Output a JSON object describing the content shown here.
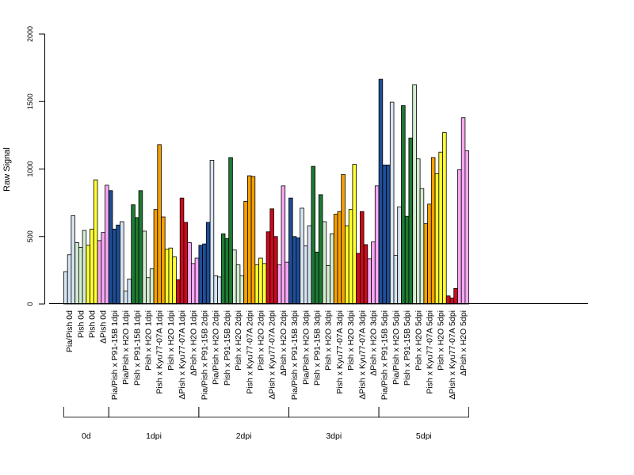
{
  "chart_data": {
    "type": "bar",
    "ylabel": "Raw Signal",
    "ylim": [
      0,
      2000
    ],
    "yticks": [
      0,
      500,
      1000,
      1500,
      2000
    ],
    "grid": false,
    "legend": "none",
    "colors": {
      "Pia/Pish": "#d6e4f2",
      "Pia/Pish x P91-15B": "#1f4e97",
      "Pia/Pish x H2O": "#d6e4f2",
      "Pish": "#d4ecd0",
      "Pish x P91-15B": "#1f7a33",
      "Pish x H2O": "#d4ecd0",
      "Pish x Kyu77-07A": "#f5a000",
      "Pish (0d)": "#ffff33",
      "Pish x H2O (yellow)": "#ffff33",
      "ΔPish": "#f7a8f2",
      "ΔPish x Kyu77-07A": "#cc0a1e",
      "ΔPish x H2O": "#f7a8f2"
    },
    "categories": [
      {
        "label": "Pia/Pish 0d",
        "color": "#d6e4f2",
        "values": [
          240,
          365,
          655
        ]
      },
      {
        "label": "Pish 0d",
        "color": "#d4ecd0",
        "values": [
          455,
          420,
          545
        ]
      },
      {
        "label": "Pish 0d",
        "color": "#ffff33",
        "values": [
          435,
          555,
          920
        ]
      },
      {
        "label": "ΔPish 0d",
        "color": "#f7a8f2",
        "values": [
          470,
          530,
          880
        ]
      },
      {
        "label": "Pia/Pish x P91-15B 1dpi",
        "color": "#1f4e97",
        "values": [
          840,
          555,
          585
        ]
      },
      {
        "label": "Pia/Pish x H2O 1dpi",
        "color": "#d6e4f2",
        "values": [
          610,
          95,
          185
        ]
      },
      {
        "label": "Pish x P91-15B 1dpi",
        "color": "#1f7a33",
        "values": [
          735,
          640,
          840
        ]
      },
      {
        "label": "Pish x H2O 1dpi",
        "color": "#d4ecd0",
        "values": [
          540,
          195,
          260
        ]
      },
      {
        "label": "Pish x Kyu77-07A 1dpi",
        "color": "#f5a000",
        "values": [
          700,
          1180,
          645
        ]
      },
      {
        "label": "Pish x H2O 1dpi",
        "color": "#ffff33",
        "values": [
          405,
          415,
          350
        ]
      },
      {
        "label": "ΔPish x Kyu77-07A 1dpi",
        "color": "#cc0a1e",
        "values": [
          180,
          785,
          605
        ]
      },
      {
        "label": "ΔPish x H2O 1dpi",
        "color": "#f7a8f2",
        "values": [
          455,
          300,
          340
        ]
      },
      {
        "label": "Pia/Pish x P91-15B 2dpi",
        "color": "#1f4e97",
        "values": [
          435,
          445,
          605
        ]
      },
      {
        "label": "Pia/Pish x H2O 2dpi",
        "color": "#d6e4f2",
        "values": [
          1065,
          210,
          200
        ]
      },
      {
        "label": "Pish x P91-15B 2dpi",
        "color": "#1f7a33",
        "values": [
          520,
          485,
          1085
        ]
      },
      {
        "label": "Pish x H2O 2dpi",
        "color": "#d4ecd0",
        "values": [
          400,
          290,
          210
        ]
      },
      {
        "label": "Pish x Kyu77-07A 2dpi",
        "color": "#f5a000",
        "values": [
          760,
          950,
          945
        ]
      },
      {
        "label": "Pish x H2O 2dpi",
        "color": "#ffff33",
        "values": [
          290,
          340,
          300
        ]
      },
      {
        "label": "ΔPish x Kyu77-07A 2dpi",
        "color": "#cc0a1e",
        "values": [
          535,
          705,
          500
        ]
      },
      {
        "label": "ΔPish x H2O 2dpi",
        "color": "#f7a8f2",
        "values": [
          290,
          875,
          310
        ]
      },
      {
        "label": "Pia/Pish x P91-15B 3dpi",
        "color": "#1f4e97",
        "values": [
          785,
          500,
          490
        ]
      },
      {
        "label": "Pia/Pish x H2O 3dpi",
        "color": "#d6e4f2",
        "values": [
          710,
          430,
          580
        ]
      },
      {
        "label": "Pish x P91-15B 3dpi",
        "color": "#1f7a33",
        "values": [
          1020,
          385,
          810
        ]
      },
      {
        "label": "Pish x H2O 3dpi",
        "color": "#d4ecd0",
        "values": [
          610,
          285,
          520
        ]
      },
      {
        "label": "Pish x Kyu77-07A 3dpi",
        "color": "#f5a000",
        "values": [
          665,
          685,
          960
        ]
      },
      {
        "label": "Pish x H2O 3dpi",
        "color": "#ffff33",
        "values": [
          580,
          700,
          1035
        ]
      },
      {
        "label": "ΔPish x Kyu77-07A 3dpi",
        "color": "#cc0a1e",
        "values": [
          375,
          685,
          440
        ]
      },
      {
        "label": "ΔPish x H2O 3dpi",
        "color": "#f7a8f2",
        "values": [
          335,
          460,
          875
        ]
      },
      {
        "label": "Pia/Pish x P91-15B 5dpi",
        "color": "#1f4e97",
        "values": [
          1665,
          1030,
          1030
        ]
      },
      {
        "label": "Pia/Pish x H2O 5dpi",
        "color": "#d6e4f2",
        "values": [
          1495,
          360,
          720
        ]
      },
      {
        "label": "Pish x P91-15B 5dpi",
        "color": "#1f7a33",
        "values": [
          1470,
          650,
          1230
        ]
      },
      {
        "label": "Pish x H2O 5dpi",
        "color": "#d4ecd0",
        "values": [
          1625,
          1075,
          855
        ]
      },
      {
        "label": "Pish x Kyu77-07A 5dpi",
        "color": "#f5a000",
        "values": [
          595,
          740,
          1085
        ]
      },
      {
        "label": "Pish x H2O 5dpi",
        "color": "#ffff33",
        "values": [
          965,
          1125,
          1270
        ]
      },
      {
        "label": "ΔPish x Kyu77-07A 5dpi",
        "color": "#cc0a1e",
        "values": [
          60,
          45,
          115
        ]
      },
      {
        "label": "ΔPish x H2O 5dpi",
        "color": "#f7a8f2",
        "values": [
          995,
          1380,
          1135
        ]
      }
    ],
    "groups": [
      {
        "label": "0d",
        "start": 0,
        "end": 3
      },
      {
        "label": "1dpi",
        "start": 4,
        "end": 11
      },
      {
        "label": "2dpi",
        "start": 12,
        "end": 19
      },
      {
        "label": "3dpi",
        "start": 20,
        "end": 27
      },
      {
        "label": "5dpi",
        "start": 28,
        "end": 35
      }
    ]
  }
}
